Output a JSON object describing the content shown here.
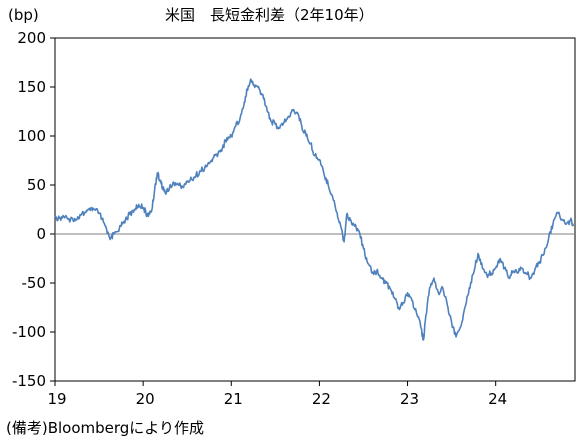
{
  "chart_data": {
    "type": "line",
    "title": "米国　長短金利差（2年10年）",
    "ylabel": "(bp)",
    "xlabel": "",
    "note": "(備考)Bloombergにより作成",
    "ylim": [
      -150,
      200
    ],
    "yticks": [
      200,
      150,
      100,
      50,
      0,
      -50,
      -100,
      -150
    ],
    "xlim": [
      2019.0,
      2024.9
    ],
    "xticks": [
      {
        "value": 2019,
        "label": "19"
      },
      {
        "value": 2020,
        "label": "20"
      },
      {
        "value": 2021,
        "label": "21"
      },
      {
        "value": 2022,
        "label": "22"
      },
      {
        "value": 2023,
        "label": "23"
      },
      {
        "value": 2024,
        "label": "24"
      }
    ],
    "line_color": "#4f81bd",
    "zero_line_color": "#808080",
    "grid": false,
    "series": [
      {
        "values": [
          [
            2019.0,
            17
          ],
          [
            2019.05,
            16
          ],
          [
            2019.1,
            18
          ],
          [
            2019.15,
            15
          ],
          [
            2019.2,
            16
          ],
          [
            2019.25,
            15
          ],
          [
            2019.3,
            20
          ],
          [
            2019.35,
            22
          ],
          [
            2019.4,
            24
          ],
          [
            2019.45,
            25
          ],
          [
            2019.5,
            21
          ],
          [
            2019.55,
            12
          ],
          [
            2019.6,
            2
          ],
          [
            2019.63,
            -4
          ],
          [
            2019.67,
            0
          ],
          [
            2019.75,
            8
          ],
          [
            2019.8,
            15
          ],
          [
            2019.85,
            20
          ],
          [
            2019.9,
            25
          ],
          [
            2019.95,
            30
          ],
          [
            2020.0,
            27
          ],
          [
            2020.03,
            22
          ],
          [
            2020.06,
            18
          ],
          [
            2020.1,
            25
          ],
          [
            2020.13,
            45
          ],
          [
            2020.16,
            62
          ],
          [
            2020.19,
            55
          ],
          [
            2020.22,
            48
          ],
          [
            2020.25,
            42
          ],
          [
            2020.3,
            48
          ],
          [
            2020.35,
            52
          ],
          [
            2020.4,
            50
          ],
          [
            2020.45,
            48
          ],
          [
            2020.5,
            53
          ],
          [
            2020.55,
            56
          ],
          [
            2020.6,
            60
          ],
          [
            2020.65,
            64
          ],
          [
            2020.7,
            68
          ],
          [
            2020.75,
            72
          ],
          [
            2020.8,
            78
          ],
          [
            2020.85,
            82
          ],
          [
            2020.9,
            88
          ],
          [
            2020.95,
            98
          ],
          [
            2021.0,
            100
          ],
          [
            2021.05,
            110
          ],
          [
            2021.1,
            118
          ],
          [
            2021.15,
            135
          ],
          [
            2021.18,
            148
          ],
          [
            2021.22,
            158
          ],
          [
            2021.25,
            152
          ],
          [
            2021.3,
            150
          ],
          [
            2021.35,
            142
          ],
          [
            2021.4,
            130
          ],
          [
            2021.45,
            115
          ],
          [
            2021.5,
            112
          ],
          [
            2021.55,
            108
          ],
          [
            2021.6,
            114
          ],
          [
            2021.65,
            120
          ],
          [
            2021.7,
            126
          ],
          [
            2021.75,
            124
          ],
          [
            2021.8,
            110
          ],
          [
            2021.85,
            100
          ],
          [
            2021.9,
            92
          ],
          [
            2021.95,
            80
          ],
          [
            2022.0,
            76
          ],
          [
            2022.05,
            62
          ],
          [
            2022.1,
            50
          ],
          [
            2022.15,
            38
          ],
          [
            2022.2,
            22
          ],
          [
            2022.25,
            5
          ],
          [
            2022.28,
            -8
          ],
          [
            2022.31,
            20
          ],
          [
            2022.35,
            15
          ],
          [
            2022.4,
            8
          ],
          [
            2022.45,
            3
          ],
          [
            2022.5,
            -15
          ],
          [
            2022.55,
            -30
          ],
          [
            2022.6,
            -40
          ],
          [
            2022.65,
            -38
          ],
          [
            2022.7,
            -45
          ],
          [
            2022.75,
            -50
          ],
          [
            2022.8,
            -55
          ],
          [
            2022.85,
            -65
          ],
          [
            2022.9,
            -75
          ],
          [
            2022.95,
            -70
          ],
          [
            2023.0,
            -60
          ],
          [
            2023.05,
            -68
          ],
          [
            2023.1,
            -80
          ],
          [
            2023.15,
            -95
          ],
          [
            2023.18,
            -108
          ],
          [
            2023.2,
            -90
          ],
          [
            2023.25,
            -55
          ],
          [
            2023.3,
            -45
          ],
          [
            2023.35,
            -60
          ],
          [
            2023.4,
            -55
          ],
          [
            2023.45,
            -72
          ],
          [
            2023.5,
            -90
          ],
          [
            2023.55,
            -105
          ],
          [
            2023.6,
            -95
          ],
          [
            2023.65,
            -75
          ],
          [
            2023.7,
            -55
          ],
          [
            2023.75,
            -40
          ],
          [
            2023.8,
            -20
          ],
          [
            2023.85,
            -35
          ],
          [
            2023.9,
            -42
          ],
          [
            2023.95,
            -40
          ],
          [
            2024.0,
            -35
          ],
          [
            2024.05,
            -25
          ],
          [
            2024.1,
            -35
          ],
          [
            2024.15,
            -45
          ],
          [
            2024.2,
            -38
          ],
          [
            2024.25,
            -40
          ],
          [
            2024.3,
            -35
          ],
          [
            2024.35,
            -40
          ],
          [
            2024.4,
            -45
          ],
          [
            2024.45,
            -35
          ],
          [
            2024.5,
            -28
          ],
          [
            2024.55,
            -20
          ],
          [
            2024.6,
            -5
          ],
          [
            2024.65,
            10
          ],
          [
            2024.7,
            22
          ],
          [
            2024.75,
            15
          ],
          [
            2024.8,
            10
          ],
          [
            2024.85,
            14
          ],
          [
            2024.88,
            8
          ]
        ]
      }
    ]
  }
}
